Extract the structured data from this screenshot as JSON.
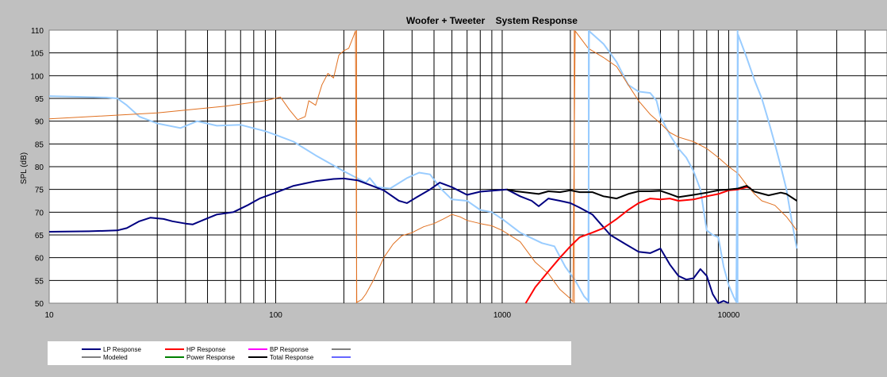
{
  "chart_data": {
    "type": "line",
    "title": "Woofer + Tweeter    System Response",
    "xlabel": "",
    "ylabel": "SPL (dB)",
    "x_scale": "log",
    "xlim": [
      10,
      50000
    ],
    "ylim": [
      50,
      110
    ],
    "x_ticks": [
      10,
      100,
      1000,
      10000
    ],
    "x_tick_labels": [
      "10",
      "100",
      "1000",
      "10000"
    ],
    "y_ticks": [
      50,
      55,
      60,
      65,
      70,
      75,
      80,
      85,
      90,
      95,
      100,
      105,
      110
    ],
    "y_tick_labels": [
      "50",
      "55",
      "60",
      "65",
      "70",
      "75",
      "80",
      "85",
      "90",
      "95",
      "100",
      "105",
      "110"
    ],
    "grid": true,
    "legend_position": "bottom",
    "legend": [
      {
        "name": "LP Response",
        "color": "#000080"
      },
      {
        "name": "HP Response",
        "color": "#ff0000"
      },
      {
        "name": "BP Response",
        "color": "#ff00ff"
      },
      {
        "name": "",
        "color": "#808080"
      },
      {
        "name": "Modeled",
        "color": "#808080"
      },
      {
        "name": "Power Response",
        "color": "#008000"
      },
      {
        "name": "Total Response",
        "color": "#000000"
      },
      {
        "name": "",
        "color": "#6666ff"
      }
    ],
    "series": [
      {
        "color": "#99ccff",
        "width": 2,
        "points": [
          [
            10,
            95.5
          ],
          [
            18,
            95.2
          ],
          [
            20,
            95
          ],
          [
            22,
            93.5
          ],
          [
            25,
            91
          ],
          [
            30,
            89.5
          ],
          [
            38,
            88.5
          ],
          [
            45,
            90
          ],
          [
            55,
            89
          ],
          [
            70,
            89.2
          ],
          [
            90,
            87.8
          ],
          [
            100,
            87
          ],
          [
            120,
            85.5
          ],
          [
            150,
            82.5
          ],
          [
            200,
            79
          ],
          [
            250,
            76.5
          ],
          [
            260,
            77.5
          ],
          [
            280,
            75.5
          ],
          [
            320,
            75.2
          ],
          [
            380,
            77.5
          ],
          [
            430,
            78.7
          ],
          [
            480,
            78.3
          ],
          [
            540,
            75
          ],
          [
            600,
            72.8
          ],
          [
            700,
            72.5
          ],
          [
            800,
            70.5
          ],
          [
            900,
            70
          ],
          [
            1000,
            68.5
          ],
          [
            1200,
            65.5
          ],
          [
            1500,
            63.2
          ],
          [
            1700,
            62.5
          ],
          [
            1900,
            58
          ],
          [
            2100,
            55
          ],
          [
            2300,
            51.5
          ],
          [
            2400,
            50.5
          ],
          [
            2420,
            109.8
          ],
          [
            2800,
            107
          ],
          [
            3200,
            103
          ],
          [
            3600,
            98
          ],
          [
            4000,
            96.5
          ],
          [
            4500,
            96.2
          ],
          [
            4800,
            94.5
          ],
          [
            5000,
            91
          ],
          [
            5500,
            87
          ],
          [
            6000,
            84
          ],
          [
            6500,
            82
          ],
          [
            7000,
            79
          ],
          [
            7500,
            75
          ],
          [
            8000,
            66
          ],
          [
            8500,
            65
          ],
          [
            9000,
            64.5
          ],
          [
            9500,
            58
          ],
          [
            10000,
            54
          ],
          [
            10500,
            51.5
          ],
          [
            10800,
            50.3
          ],
          [
            11000,
            109
          ],
          [
            12000,
            104
          ],
          [
            13000,
            99
          ],
          [
            14000,
            95
          ],
          [
            15000,
            90
          ],
          [
            16000,
            85
          ],
          [
            17000,
            80
          ],
          [
            18000,
            75
          ],
          [
            19000,
            68
          ],
          [
            20000,
            62
          ]
        ]
      },
      {
        "color": "#e07020",
        "width": 1,
        "points": [
          [
            10,
            90.5
          ],
          [
            30,
            91.8
          ],
          [
            60,
            93.3
          ],
          [
            90,
            94.5
          ],
          [
            105,
            95.3
          ],
          [
            115,
            92.5
          ],
          [
            125,
            90.3
          ],
          [
            135,
            91
          ],
          [
            140,
            94.5
          ],
          [
            150,
            93.5
          ],
          [
            160,
            98
          ],
          [
            170,
            100.5
          ],
          [
            180,
            99.5
          ],
          [
            190,
            104.5
          ],
          [
            200,
            105.5
          ],
          [
            210,
            106
          ],
          [
            220,
            108.5
          ],
          [
            225,
            109.8
          ],
          [
            228,
            50.2
          ],
          [
            240,
            50.8
          ],
          [
            250,
            52
          ],
          [
            270,
            55
          ],
          [
            300,
            60
          ],
          [
            330,
            63
          ],
          [
            360,
            64.8
          ],
          [
            400,
            65.5
          ],
          [
            450,
            66.8
          ],
          [
            500,
            67.5
          ],
          [
            550,
            68.5
          ],
          [
            600,
            69.5
          ],
          [
            650,
            69
          ],
          [
            700,
            68.2
          ],
          [
            800,
            67.5
          ],
          [
            900,
            67
          ],
          [
            1000,
            66
          ],
          [
            1200,
            63.5
          ],
          [
            1400,
            59
          ],
          [
            1600,
            56.5
          ],
          [
            1800,
            53
          ],
          [
            2000,
            51
          ],
          [
            2050,
            50.3
          ],
          [
            2100,
            109.8
          ],
          [
            2400,
            106
          ],
          [
            2800,
            104
          ],
          [
            3200,
            102
          ],
          [
            3600,
            98
          ],
          [
            4000,
            94.5
          ],
          [
            4500,
            91.5
          ],
          [
            5000,
            89.5
          ],
          [
            5500,
            87.5
          ],
          [
            6000,
            86.5
          ],
          [
            7000,
            85.5
          ],
          [
            8000,
            84
          ],
          [
            9000,
            82
          ],
          [
            10000,
            80
          ],
          [
            11000,
            78.5
          ],
          [
            12000,
            76
          ],
          [
            13000,
            74
          ],
          [
            14000,
            72.5
          ],
          [
            16000,
            71.5
          ],
          [
            18000,
            69
          ],
          [
            20000,
            66
          ]
        ]
      },
      {
        "color": "#e07020",
        "width": 1,
        "points": [
          [
            227.5,
            50
          ],
          [
            227.5,
            110
          ]
        ]
      },
      {
        "color": "#e07020",
        "width": 1,
        "points": [
          [
            2080,
            50
          ],
          [
            2080,
            110
          ]
        ]
      },
      {
        "color": "#99ccff",
        "width": 2,
        "points": [
          [
            2410,
            50
          ],
          [
            2410,
            110
          ]
        ]
      },
      {
        "color": "#99ccff",
        "width": 2,
        "points": [
          [
            10950,
            50
          ],
          [
            10950,
            110
          ]
        ]
      },
      {
        "color": "#000080",
        "width": 2,
        "points": [
          [
            10,
            65.7
          ],
          [
            15,
            65.8
          ],
          [
            20,
            66
          ],
          [
            22,
            66.5
          ],
          [
            25,
            68
          ],
          [
            28,
            68.8
          ],
          [
            32,
            68.5
          ],
          [
            35,
            68
          ],
          [
            40,
            67.5
          ],
          [
            43,
            67.3
          ],
          [
            48,
            68.3
          ],
          [
            55,
            69.5
          ],
          [
            65,
            70
          ],
          [
            75,
            71.5
          ],
          [
            85,
            73
          ],
          [
            100,
            74.3
          ],
          [
            120,
            75.8
          ],
          [
            150,
            76.8
          ],
          [
            180,
            77.3
          ],
          [
            200,
            77.4
          ],
          [
            230,
            77
          ],
          [
            260,
            76
          ],
          [
            300,
            74.8
          ],
          [
            350,
            72.5
          ],
          [
            380,
            72
          ],
          [
            420,
            73.3
          ],
          [
            480,
            75
          ],
          [
            530,
            76.5
          ],
          [
            600,
            75.5
          ],
          [
            700,
            73.8
          ],
          [
            800,
            74.5
          ],
          [
            950,
            74.8
          ],
          [
            1050,
            75
          ],
          [
            1200,
            73.5
          ],
          [
            1350,
            72.5
          ],
          [
            1450,
            71.3
          ],
          [
            1600,
            73
          ],
          [
            1800,
            72.5
          ],
          [
            2000,
            72
          ],
          [
            2200,
            71
          ],
          [
            2500,
            69.5
          ],
          [
            3000,
            65
          ],
          [
            3500,
            63
          ],
          [
            4000,
            61.3
          ],
          [
            4500,
            61
          ],
          [
            5000,
            62
          ],
          [
            5500,
            58.5
          ],
          [
            6000,
            56
          ],
          [
            6500,
            55.2
          ],
          [
            7000,
            55.5
          ],
          [
            7500,
            57.5
          ],
          [
            8000,
            56
          ],
          [
            8500,
            52
          ],
          [
            9000,
            50
          ],
          [
            9500,
            50.5
          ],
          [
            10000,
            50
          ]
        ]
      },
      {
        "color": "#ff0000",
        "width": 2,
        "points": [
          [
            1270,
            50
          ],
          [
            1400,
            53.5
          ],
          [
            1600,
            57
          ],
          [
            1800,
            60
          ],
          [
            2000,
            62.5
          ],
          [
            2200,
            64.5
          ],
          [
            2500,
            65.5
          ],
          [
            2800,
            66.5
          ],
          [
            3200,
            68.5
          ],
          [
            3600,
            70.5
          ],
          [
            4000,
            72
          ],
          [
            4500,
            73
          ],
          [
            5000,
            72.8
          ],
          [
            5500,
            73
          ],
          [
            6000,
            72.5
          ],
          [
            7000,
            72.8
          ],
          [
            8000,
            73.5
          ],
          [
            9000,
            74
          ],
          [
            10000,
            74.8
          ],
          [
            11000,
            75
          ],
          [
            12000,
            75.5
          ],
          [
            12500,
            75.3
          ]
        ]
      },
      {
        "color": "#000000",
        "width": 2,
        "points": [
          [
            1050,
            75
          ],
          [
            1150,
            74.6
          ],
          [
            1300,
            74.3
          ],
          [
            1450,
            74
          ],
          [
            1600,
            74.6
          ],
          [
            1800,
            74.4
          ],
          [
            2000,
            74.8
          ],
          [
            2200,
            74.4
          ],
          [
            2500,
            74.4
          ],
          [
            2800,
            73.5
          ],
          [
            3200,
            73
          ],
          [
            3600,
            74
          ],
          [
            4000,
            74.6
          ],
          [
            4500,
            74.6
          ],
          [
            5000,
            74.7
          ],
          [
            5500,
            74
          ],
          [
            6000,
            73.3
          ],
          [
            7000,
            73.8
          ],
          [
            8000,
            74.3
          ],
          [
            9000,
            74.8
          ],
          [
            10000,
            75
          ],
          [
            11000,
            75.2
          ],
          [
            12000,
            75.8
          ],
          [
            13000,
            74.5
          ],
          [
            15000,
            73.7
          ],
          [
            17000,
            74.3
          ],
          [
            18000,
            74
          ],
          [
            20000,
            72.5
          ]
        ]
      }
    ]
  }
}
